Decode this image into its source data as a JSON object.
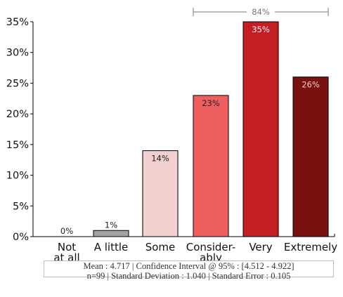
{
  "chart_data": {
    "type": "bar",
    "categories": [
      [
        "Not",
        "at all"
      ],
      [
        "A little"
      ],
      [
        "Some"
      ],
      [
        "Consider-",
        "ably"
      ],
      [
        "Very"
      ],
      [
        "Extremely"
      ]
    ],
    "values": [
      0,
      1,
      14,
      23,
      35,
      26
    ],
    "data_labels": [
      "0%",
      "1%",
      "14%",
      "23%",
      "35%",
      "26%"
    ],
    "colors": [
      "#d9d9d9",
      "#a3a3a3",
      "#f2d0d0",
      "#f05f5f",
      "#c41e24",
      "#7a1010"
    ],
    "label_colors": [
      "#222222",
      "#222222",
      "#222222",
      "#222222",
      "#ffffff",
      "#f2c9c9"
    ],
    "ylim": [
      0,
      35
    ],
    "y_ticks": [
      0,
      5,
      10,
      15,
      20,
      25,
      30,
      35
    ],
    "y_tick_labels": [
      "0%",
      "5%",
      "10%",
      "15%",
      "20%",
      "25%",
      "30%",
      "35%"
    ],
    "bracket": {
      "label": "84%",
      "from_category": 3,
      "to_category": 5
    },
    "xlabel": "",
    "ylabel": "",
    "title": "",
    "grid": false
  },
  "stats": {
    "line1": "Mean : 4.717  |  Confidence Interval @ 95% : [4.512 - 4.922]",
    "line2": "n=99  |  Standard Deviation : 1.040  |  Standard Error : 0.105"
  }
}
